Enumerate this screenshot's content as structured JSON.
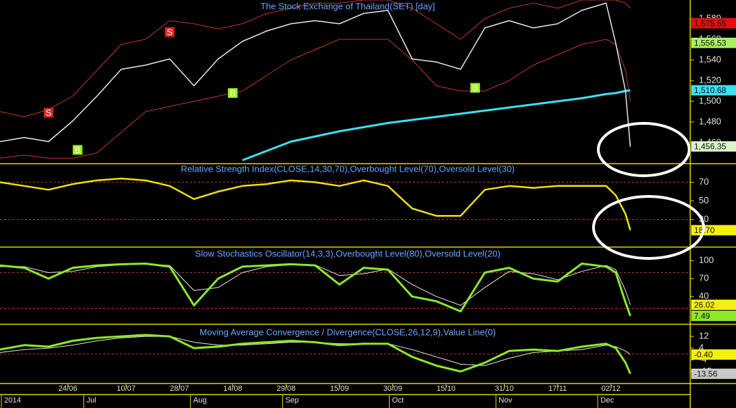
{
  "chart_data": [
    {
      "type": "line",
      "title": "The Stock Exchange of Thailand(SET) [day]",
      "x": [
        0,
        5,
        10,
        15,
        20,
        25,
        30,
        35,
        40,
        45,
        50,
        55,
        60,
        65,
        70,
        75,
        80,
        85,
        90,
        95,
        100,
        105,
        110,
        115,
        120,
        125,
        127,
        129,
        130
      ],
      "xlim": [
        0,
        142
      ],
      "ylim": [
        1440,
        1598
      ],
      "yticks": [
        {
          "value": 1460,
          "label": "1,460"
        },
        {
          "value": 1480,
          "label": "1,480"
        },
        {
          "value": 1500,
          "label": "1,500"
        },
        {
          "value": 1520,
          "label": "1,520"
        },
        {
          "value": 1540,
          "label": "1,540"
        },
        {
          "value": 1560,
          "label": "1,560"
        },
        {
          "value": 1580,
          "label": "1,580"
        }
      ],
      "series": [
        {
          "color": "#c0392b",
          "width": 1,
          "values": [
            1490,
            1485,
            1492,
            1505,
            1530,
            1555,
            1560,
            1578,
            1575,
            1570,
            1575,
            1585,
            1590,
            1595,
            1595,
            1598,
            1598,
            1590,
            1575,
            1560,
            1580,
            1590,
            1595,
            1590,
            1598,
            1598,
            1598,
            1595,
            1590
          ]
        },
        {
          "color": "#c0392b",
          "width": 1,
          "values": [
            1445,
            1448,
            1445,
            1445,
            1450,
            1470,
            1490,
            1495,
            1500,
            1505,
            1510,
            1525,
            1540,
            1550,
            1560,
            1560,
            1560,
            1540,
            1515,
            1510,
            1510,
            1520,
            1535,
            1545,
            1555,
            1560,
            1555,
            1530,
            1500
          ]
        },
        {
          "color": "#3de0f0",
          "width": 3,
          "values": [
            null,
            null,
            null,
            null,
            null,
            null,
            null,
            null,
            null,
            null,
            1443,
            1452,
            1461,
            1466,
            1471,
            1475,
            1479,
            1482,
            1485,
            1488,
            1491,
            1494,
            1497,
            1500,
            1503,
            1507,
            1508,
            1510,
            1510.68
          ]
        },
        {
          "color": "#e8e8e8",
          "width": 1.5,
          "values": [
            1461,
            1465,
            1461,
            1481,
            1505,
            1531,
            1535,
            1541,
            1515,
            1541,
            1558,
            1568,
            1575,
            1578,
            1575,
            1585,
            1588,
            1541,
            1538,
            1531,
            1571,
            1578,
            1571,
            1575,
            1588,
            1595,
            1556,
            1510,
            1456
          ]
        }
      ],
      "annotations": [
        {
          "x": 10,
          "y": 1489,
          "label": "S",
          "color": "#e02020"
        },
        {
          "x": 35,
          "y": 1567,
          "label": "S",
          "color": "#e02020"
        },
        {
          "x": 16,
          "y": 1453,
          "label": "B",
          "color": "#9ef01a"
        },
        {
          "x": 48,
          "y": 1508,
          "label": "B",
          "color": "#9ef01a"
        },
        {
          "x": 98,
          "y": 1513,
          "label": "B",
          "color": "#9ef01a"
        }
      ],
      "tags": [
        {
          "value": 1575.55,
          "label": "1,575.55",
          "color": "#e01010"
        },
        {
          "value": 1556.53,
          "label": "1,556.53",
          "color": "#a8f060"
        },
        {
          "value": 1510.68,
          "label": "1,510.68",
          "color": "#3de0f0"
        },
        {
          "value": 1456.35,
          "label": "1,456.35",
          "color": "#d8f5c8"
        }
      ]
    },
    {
      "type": "line",
      "title": "Relative Strength Index(CLOSE,14,30,70),Overbought Level(70),Oversold Level(30)",
      "x": [
        0,
        5,
        10,
        15,
        20,
        25,
        30,
        35,
        40,
        45,
        50,
        55,
        60,
        65,
        70,
        75,
        80,
        85,
        90,
        95,
        100,
        105,
        110,
        115,
        120,
        125,
        127,
        129,
        130
      ],
      "xlim": [
        0,
        142
      ],
      "ylim": [
        1,
        88
      ],
      "yticks": [
        30,
        50,
        70
      ],
      "levels": [
        70,
        30
      ],
      "series": [
        {
          "color": "#f0e010",
          "width": 2.5,
          "values": [
            70,
            66,
            62,
            68,
            72,
            74,
            72,
            66,
            52,
            60,
            66,
            68,
            72,
            70,
            66,
            72,
            66,
            42,
            34,
            34,
            62,
            66,
            64,
            66,
            66,
            66,
            56,
            36,
            18.7
          ]
        }
      ],
      "tags": [
        {
          "value": 18.7,
          "label": "18.70",
          "color": "#f5f010"
        }
      ]
    },
    {
      "type": "line",
      "title": "Slow Stochastics Oscillator(14,3,3),Overbought Level(80),Oversold Level(20)",
      "x": [
        0,
        5,
        10,
        15,
        20,
        25,
        30,
        35,
        40,
        45,
        50,
        55,
        60,
        65,
        70,
        75,
        80,
        85,
        90,
        95,
        100,
        105,
        110,
        115,
        120,
        125,
        127,
        129,
        130
      ],
      "xlim": [
        0,
        142
      ],
      "ylim": [
        -6,
        121
      ],
      "yticks": [
        40,
        70,
        100
      ],
      "levels": [
        80,
        20
      ],
      "series": [
        {
          "color": "#e8e8e8",
          "width": 1,
          "values": [
            90,
            90,
            80,
            82,
            90,
            93,
            94,
            92,
            50,
            55,
            80,
            90,
            93,
            93,
            75,
            78,
            86,
            60,
            40,
            25,
            55,
            82,
            78,
            68,
            82,
            92,
            85,
            50,
            26.02
          ]
        },
        {
          "color": "#8ee82a",
          "width": 3,
          "values": [
            92,
            88,
            70,
            88,
            92,
            94,
            95,
            90,
            25,
            70,
            90,
            92,
            94,
            92,
            60,
            88,
            85,
            40,
            32,
            15,
            80,
            88,
            70,
            65,
            95,
            90,
            80,
            30,
            7.49
          ]
        }
      ],
      "tags": [
        {
          "value": 26.02,
          "label": "26.02",
          "color": "#f5f010"
        },
        {
          "value": 7.49,
          "label": "7.49",
          "color": "#8ee82a"
        }
      ]
    },
    {
      "type": "line",
      "title": "Moving Average Convergence / Divergence(CLOSE,26,12,9),Value Line(0)",
      "x": [
        0,
        5,
        10,
        15,
        20,
        25,
        30,
        35,
        40,
        45,
        50,
        55,
        60,
        65,
        70,
        75,
        80,
        85,
        90,
        95,
        100,
        105,
        110,
        115,
        120,
        125,
        127,
        129,
        130
      ],
      "xlim": [
        0,
        142
      ],
      "ylim": [
        -20,
        19.6
      ],
      "yticks": [
        -12,
        -4,
        4,
        12
      ],
      "levels": [
        0
      ],
      "series": [
        {
          "color": "#e8e8e8",
          "width": 1,
          "values": [
            1,
            3,
            4,
            6,
            9,
            11,
            12,
            12,
            8,
            6,
            6,
            7,
            8,
            8,
            7,
            7,
            7,
            3,
            -2,
            -7,
            -8,
            -3,
            1,
            2,
            3,
            6,
            5,
            2,
            -0.4
          ]
        },
        {
          "color": "#8ee82a",
          "width": 3,
          "values": [
            3,
            6,
            5,
            9,
            11,
            12,
            13,
            12,
            4,
            5,
            7,
            8,
            9,
            8,
            6,
            7,
            7,
            -2,
            -8,
            -12,
            -6,
            2,
            3,
            2,
            5,
            7,
            4,
            -6,
            -13.56
          ]
        }
      ],
      "tags": [
        {
          "value": -0.4,
          "label": "-0.40",
          "color": "#f5f010"
        },
        {
          "value": -13.56,
          "label": "-13.56",
          "color": "#c8c8c8"
        }
      ],
      "xticks": [
        {
          "value": 14,
          "label": "24/06"
        },
        {
          "value": 26,
          "label": "10/07"
        },
        {
          "value": 37,
          "label": "28/07"
        },
        {
          "value": 48,
          "label": "14/08"
        },
        {
          "value": 59,
          "label": "29/08"
        },
        {
          "value": 70,
          "label": "15/09"
        },
        {
          "value": 81,
          "label": "30/09"
        },
        {
          "value": 92,
          "label": "15/10"
        },
        {
          "value": 104,
          "label": "31/10"
        },
        {
          "value": 115,
          "label": "17/11"
        },
        {
          "value": 126,
          "label": "02/12"
        }
      ],
      "month_ticks": [
        {
          "value": 0,
          "label": "2014"
        },
        {
          "value": 17,
          "label": "Jul"
        },
        {
          "value": 39,
          "label": "Aug"
        },
        {
          "value": 58,
          "label": "Sep"
        },
        {
          "value": 80,
          "label": "Oct"
        },
        {
          "value": 102,
          "label": "Nov"
        },
        {
          "value": 123,
          "label": "Dec"
        }
      ]
    }
  ]
}
